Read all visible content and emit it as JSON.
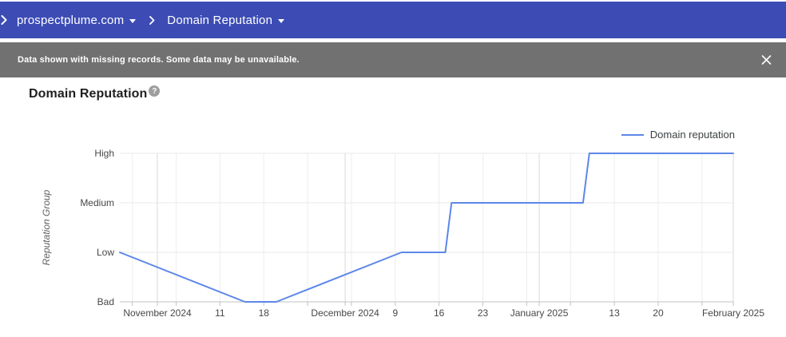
{
  "header": {
    "breadcrumb": [
      {
        "label": "prospectplume.com"
      },
      {
        "label": "Domain Reputation"
      }
    ]
  },
  "notification": {
    "message": "Data shown with missing records. Some data may be unavailable.",
    "close_icon": "x"
  },
  "page": {
    "title": "Domain Reputation",
    "help_icon": "?"
  },
  "legend": {
    "items": [
      {
        "label": "Domain reputation",
        "color": "#5c87e8"
      }
    ]
  },
  "chart_data": {
    "type": "line",
    "title": "Domain Reputation",
    "xlabel": "",
    "ylabel": "Reputation Group",
    "y_categories": [
      "Bad",
      "Low",
      "Medium",
      "High"
    ],
    "x_start": "2024-10-26",
    "x_end": "2025-02-01",
    "grid": true,
    "legend_position": "top-right",
    "series": [
      {
        "name": "Domain reputation",
        "color": "#5c87e8",
        "points": [
          {
            "date": "2024-10-26",
            "value": "Low"
          },
          {
            "date": "2024-11-15",
            "value": "Bad"
          },
          {
            "date": "2024-11-20",
            "value": "Bad"
          },
          {
            "date": "2024-12-10",
            "value": "Low"
          },
          {
            "date": "2024-12-17",
            "value": "Low"
          },
          {
            "date": "2024-12-18",
            "value": "Medium"
          },
          {
            "date": "2025-01-08",
            "value": "Medium"
          },
          {
            "date": "2025-01-09",
            "value": "High"
          },
          {
            "date": "2025-02-01",
            "value": "High"
          }
        ]
      }
    ],
    "x_ticks": [
      {
        "date": "2024-11-01",
        "label": "November 2024",
        "month_start": true
      },
      {
        "date": "2024-11-11",
        "label": "11"
      },
      {
        "date": "2024-11-18",
        "label": "18"
      },
      {
        "date": "2024-12-01",
        "label": "December 2024",
        "month_start": true
      },
      {
        "date": "2024-12-09",
        "label": "9"
      },
      {
        "date": "2024-12-16",
        "label": "16"
      },
      {
        "date": "2024-12-23",
        "label": "23"
      },
      {
        "date": "2025-01-01",
        "label": "January 2025",
        "month_start": true
      },
      {
        "date": "2025-01-13",
        "label": "13"
      },
      {
        "date": "2025-01-20",
        "label": "20"
      },
      {
        "date": "2025-02-01",
        "label": "February 2025",
        "month_start": true
      }
    ],
    "minor_gridlines": [
      "2024-10-28",
      "2024-11-04",
      "2024-11-11",
      "2024-11-18",
      "2024-11-25",
      "2024-12-02",
      "2024-12-09",
      "2024-12-16",
      "2024-12-23",
      "2024-12-30",
      "2025-01-06",
      "2025-01-13",
      "2025-01-20",
      "2025-01-27"
    ]
  },
  "colors": {
    "header_bg": "#3d4cb5",
    "notification_bg": "#717171",
    "line": "#5c87e8",
    "grid_minor": "#ededed",
    "grid_month": "#d9d9d9",
    "grid_horizontal": "#e8e8e8",
    "axis_line": "#c2c2c2",
    "text_axis": "#474747",
    "text_axis_title": "#5f5f5f",
    "help_icon_bg": "#9e9e9e"
  }
}
